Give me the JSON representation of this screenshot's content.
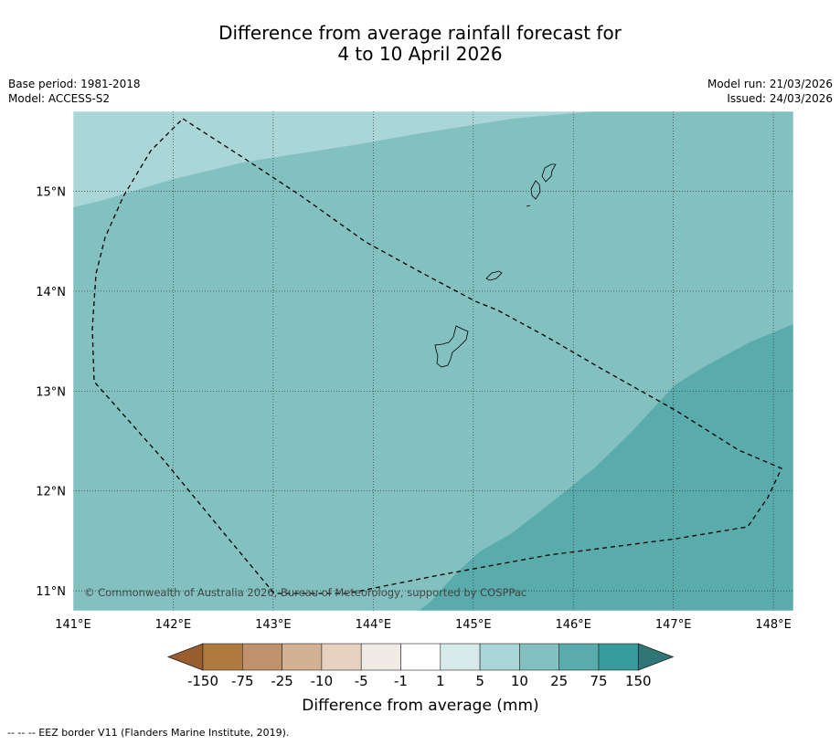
{
  "title": {
    "line1": "Difference from average rainfall forecast for",
    "line2": "4 to 10 April 2026"
  },
  "meta": {
    "base_period": "Base period: 1981-2018",
    "model": "Model: ACCESS-S2",
    "model_run": "Model run: 21/03/2026",
    "issued": "Issued: 24/03/2026"
  },
  "map": {
    "lon_range": [
      141.0,
      148.2
    ],
    "lat_range": [
      10.8,
      15.8
    ],
    "lon_ticks": [
      "141°E",
      "142°E",
      "143°E",
      "144°E",
      "145°E",
      "146°E",
      "147°E",
      "148°E"
    ],
    "lat_ticks": [
      "15°N",
      "14°N",
      "13°N",
      "12°N",
      "11°N"
    ],
    "copyright": "© Commonwealth of Australia 2026, Bureau of Meteorology, supported by COSPPac"
  },
  "legend": {
    "tick_labels": [
      "-150",
      "-75",
      "-25",
      "-10",
      "-5",
      "-1",
      "1",
      "5",
      "10",
      "25",
      "75",
      "150"
    ],
    "colors": [
      "#995d30",
      "#b07a3f",
      "#c0916a",
      "#d3b294",
      "#e7d2c0",
      "#f1ebe6",
      "#ffffff",
      "#d5eae9",
      "#abd6d7",
      "#83c0c0",
      "#5aabab",
      "#389c9c",
      "#317676"
    ],
    "title": "Difference from average (mm)"
  },
  "footer": "--  --  -- EEZ border V11 (Flanders Marine Institute, 2019).",
  "colors": {
    "zone_5_10": "#abd6d7",
    "zone_10_25": "#83c0c0",
    "zone_25_75": "#5aabab"
  }
}
